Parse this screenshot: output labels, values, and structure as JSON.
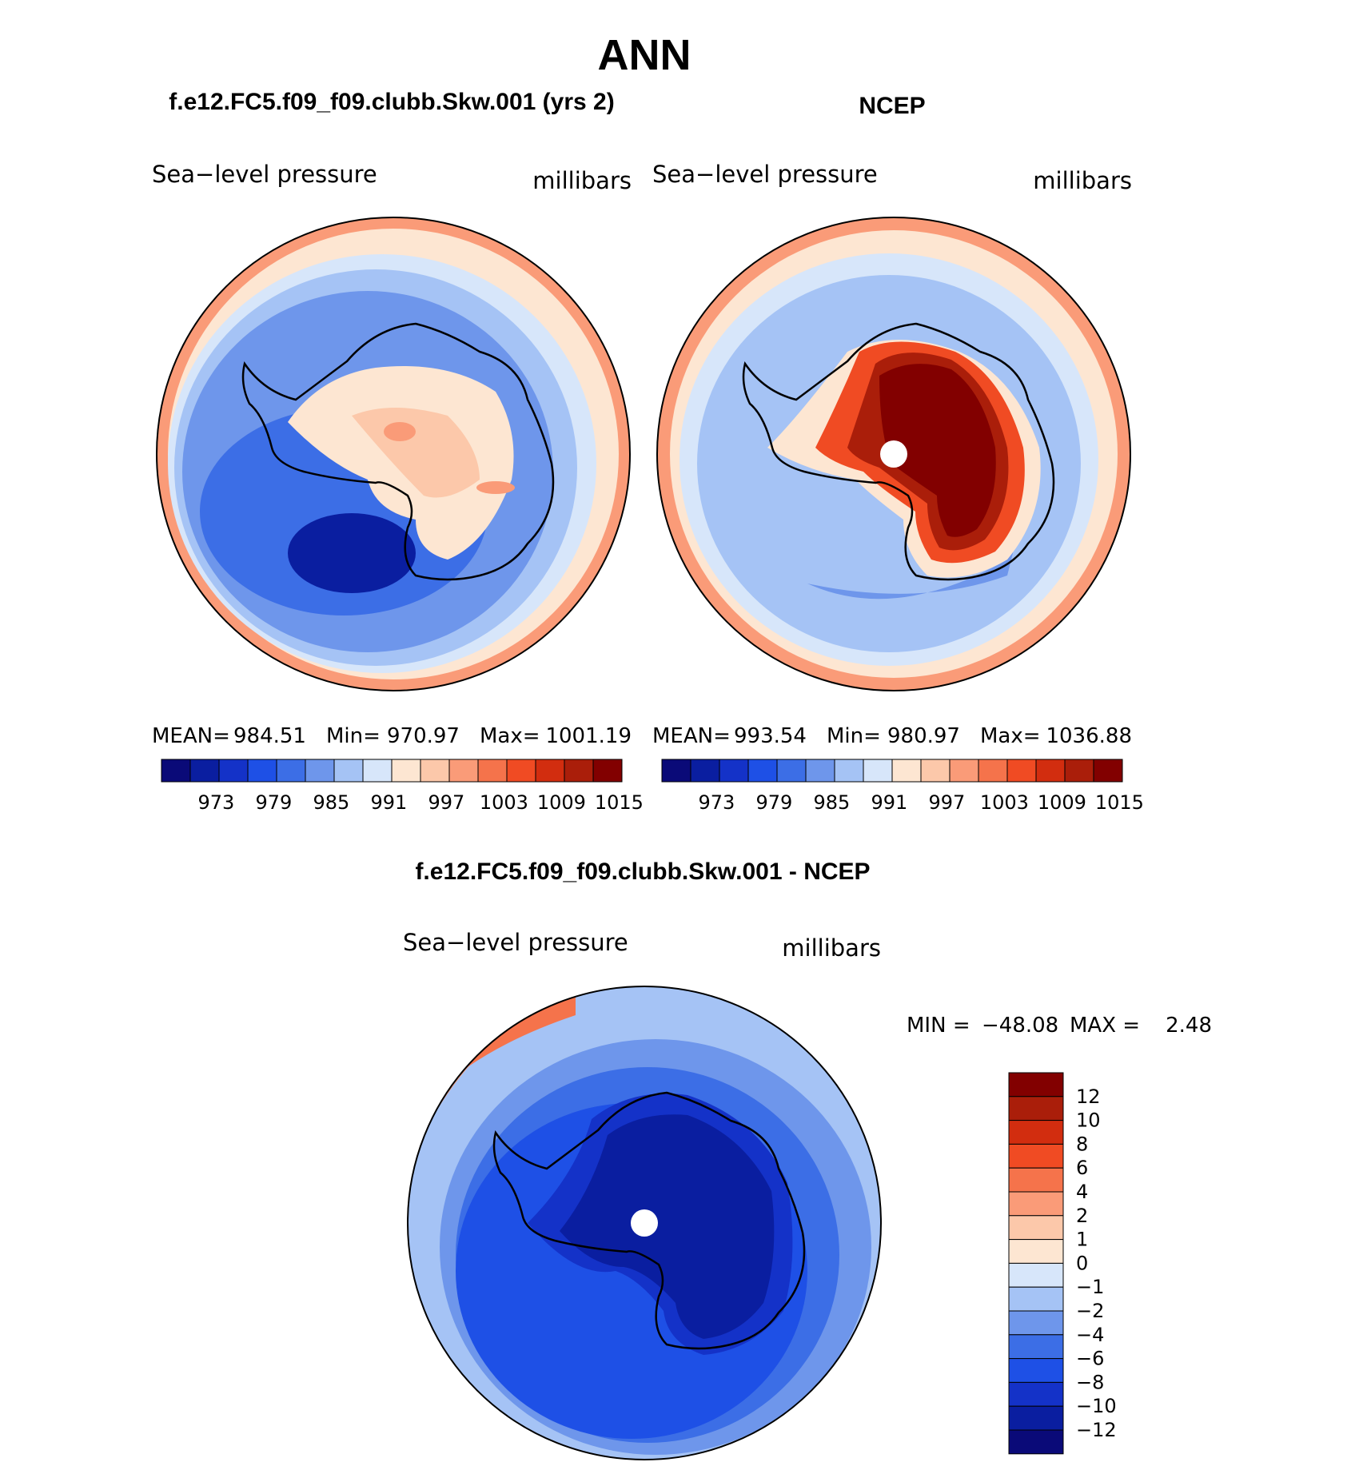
{
  "figure": {
    "title": "ANN",
    "panel_titles": {
      "model": "f.e12.FC5.f09_f09.clubb.Skw.001 (yrs 2)",
      "obs": "NCEP",
      "diff": "f.e12.FC5.f09_f09.clubb.Skw.001 - NCEP"
    }
  },
  "colors": {
    "abs_palette": [
      "#0a0a78",
      "#0a1ea0",
      "#1432c8",
      "#1e50e6",
      "#3c6ee6",
      "#6e96eb",
      "#a5c3f5",
      "#d7e6fa",
      "#fde6d2",
      "#fcc8aa",
      "#fa9b78",
      "#f5734b",
      "#f04b23",
      "#d22d0f",
      "#aa1e0a",
      "#820000"
    ],
    "diff_palette": [
      "#0a0a78",
      "#0a1ea0",
      "#1432c8",
      "#1e50e6",
      "#3c6ee6",
      "#6e96eb",
      "#a5c3f5",
      "#d7e6fa",
      "#fde6d2",
      "#fcc8aa",
      "#fa9b78",
      "#f5734b",
      "#f04b23",
      "#d22d0f",
      "#aa1e0a",
      "#820000"
    ],
    "coastline": "#000000",
    "pole": "#ffffff"
  },
  "chart_data": [
    {
      "type": "contour-map",
      "projection": "south-polar-stereographic",
      "panel": "model",
      "left_label": "Sea−level pressure",
      "right_label": "millibars",
      "stats": {
        "mean_label": "MEAN=",
        "mean": "984.51",
        "min_label": "Min=",
        "min": "970.97",
        "max_label": "Max=",
        "max": "1001.19"
      },
      "colorbar": {
        "orientation": "horizontal",
        "levels": [
          970,
          973,
          976,
          979,
          982,
          985,
          988,
          991,
          994,
          997,
          1000,
          1003,
          1006,
          1009,
          1012,
          1015
        ],
        "tick_labels": [
          "973",
          "979",
          "985",
          "991",
          "997",
          "1003",
          "1009",
          "1015"
        ]
      },
      "field_levels": {
        "outer_ring": 994,
        "mid_ocean": 985,
        "storm_track": 982,
        "amundsen_low": 970,
        "continent": 991,
        "interior_high": 997
      },
      "pole_masked": false
    },
    {
      "type": "contour-map",
      "projection": "south-polar-stereographic",
      "panel": "obs",
      "left_label": "Sea−level pressure",
      "right_label": "millibars",
      "stats": {
        "mean_label": "MEAN=",
        "mean": "993.54",
        "min_label": "Min=",
        "min": "980.97",
        "max_label": "Max=",
        "max": "1036.88"
      },
      "colorbar": {
        "orientation": "horizontal",
        "levels": [
          970,
          973,
          976,
          979,
          982,
          985,
          988,
          991,
          994,
          997,
          1000,
          1003,
          1006,
          1009,
          1012,
          1015
        ],
        "tick_labels": [
          "973",
          "979",
          "985",
          "991",
          "997",
          "1003",
          "1009",
          "1015"
        ]
      },
      "field_levels": {
        "outer_ring": 994,
        "mid_ocean": 988,
        "storm_track": 985,
        "coast": 991,
        "interior_high": 1015
      },
      "pole_masked": true
    },
    {
      "type": "contour-map",
      "projection": "south-polar-stereographic",
      "panel": "diff",
      "left_label": "Sea−level pressure",
      "right_label": "millibars",
      "stats": {
        "min_label": "MIN =",
        "min": "−48.08",
        "max_label": "MAX =",
        "max": "2.48"
      },
      "colorbar": {
        "orientation": "vertical",
        "levels": [
          -12,
          -10,
          -8,
          -6,
          -4,
          -2,
          -1,
          0,
          1,
          2,
          4,
          6,
          8,
          10,
          12
        ],
        "tick_labels": [
          "12",
          "10",
          "8",
          "6",
          "4",
          "2",
          "1",
          "0",
          "−1",
          "−2",
          "−4",
          "−6",
          "−8",
          "−10",
          "−12"
        ]
      },
      "field_levels": {
        "outer_ring": -2,
        "mid_ocean": -6,
        "storm_track": -8,
        "continent": -12,
        "ne_anomaly": 2
      },
      "pole_masked": true
    }
  ]
}
